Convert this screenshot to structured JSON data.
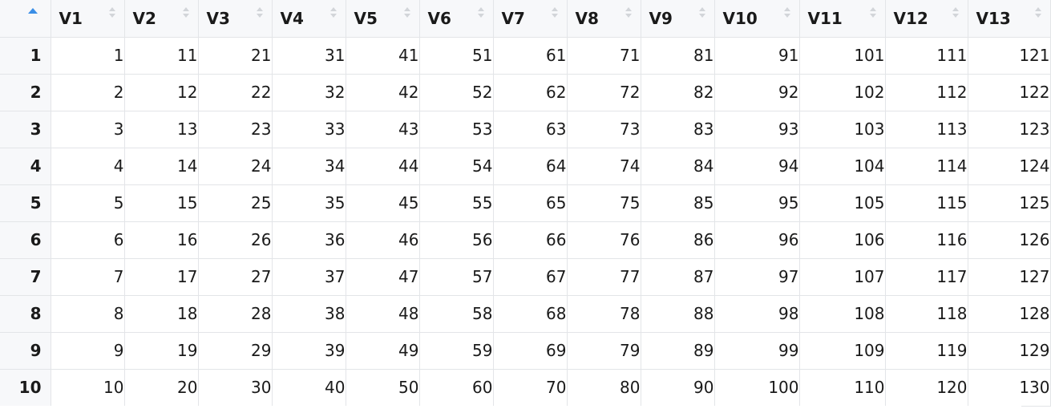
{
  "table": {
    "sort_indicator_icon": "sort-ascending-icon",
    "sort_indicator_color": "#3a8ee6",
    "columns": [
      "V1",
      "V2",
      "V3",
      "V4",
      "V5",
      "V6",
      "V7",
      "V8",
      "V9",
      "V10",
      "V11",
      "V12",
      "V13"
    ],
    "rows": [
      {
        "row": "1",
        "cells": [
          "1",
          "11",
          "21",
          "31",
          "41",
          "51",
          "61",
          "71",
          "81",
          "91",
          "101",
          "111",
          "121"
        ]
      },
      {
        "row": "2",
        "cells": [
          "2",
          "12",
          "22",
          "32",
          "42",
          "52",
          "62",
          "72",
          "82",
          "92",
          "102",
          "112",
          "122"
        ]
      },
      {
        "row": "3",
        "cells": [
          "3",
          "13",
          "23",
          "33",
          "43",
          "53",
          "63",
          "73",
          "83",
          "93",
          "103",
          "113",
          "123"
        ]
      },
      {
        "row": "4",
        "cells": [
          "4",
          "14",
          "24",
          "34",
          "44",
          "54",
          "64",
          "74",
          "84",
          "94",
          "104",
          "114",
          "124"
        ]
      },
      {
        "row": "5",
        "cells": [
          "5",
          "15",
          "25",
          "35",
          "45",
          "55",
          "65",
          "75",
          "85",
          "95",
          "105",
          "115",
          "125"
        ]
      },
      {
        "row": "6",
        "cells": [
          "6",
          "16",
          "26",
          "36",
          "46",
          "56",
          "66",
          "76",
          "86",
          "96",
          "106",
          "116",
          "126"
        ]
      },
      {
        "row": "7",
        "cells": [
          "7",
          "17",
          "27",
          "37",
          "47",
          "57",
          "67",
          "77",
          "87",
          "97",
          "107",
          "117",
          "127"
        ]
      },
      {
        "row": "8",
        "cells": [
          "8",
          "18",
          "28",
          "38",
          "48",
          "58",
          "68",
          "78",
          "88",
          "98",
          "108",
          "118",
          "128"
        ]
      },
      {
        "row": "9",
        "cells": [
          "9",
          "19",
          "29",
          "39",
          "49",
          "59",
          "69",
          "79",
          "89",
          "99",
          "109",
          "119",
          "129"
        ]
      },
      {
        "row": "10",
        "cells": [
          "10",
          "20",
          "30",
          "40",
          "50",
          "60",
          "70",
          "80",
          "90",
          "100",
          "110",
          "120",
          "130"
        ]
      }
    ]
  }
}
